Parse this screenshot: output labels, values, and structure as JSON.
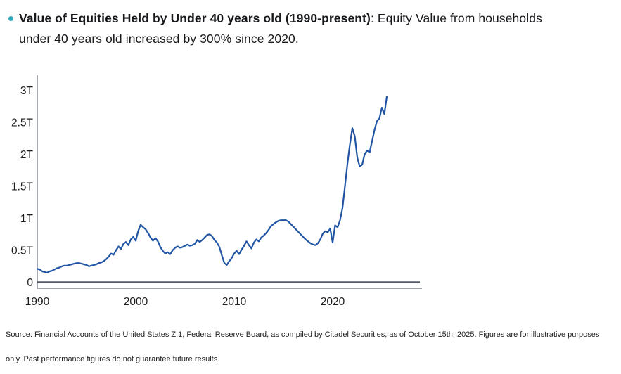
{
  "page": {
    "background": "#ffffff"
  },
  "bullet": {
    "color": "#2fa9b8"
  },
  "title": {
    "bold": "Value of Equities Held by Under 40 years old (1990-present)",
    "rest": ": Equity Value from households under 40 years old increased by 300% since 2020."
  },
  "footer": {
    "line1": "Source: Financial Accounts of the United States Z.1, Federal Reserve Board, as compiled by Citadel Securities, as of October 15th, 2025. Figures are for illustrative purposes",
    "line2": "only. Past performance figures do not guarantee future results."
  },
  "chart_data": {
    "type": "line",
    "title": "Value of Equities Held by Under 40 years old (1990-present)",
    "xlabel": "",
    "ylabel": "",
    "unit": "T (trillions)",
    "grid": false,
    "legend": "none",
    "xlim": [
      1990,
      2029
    ],
    "ylim": [
      0,
      3.2
    ],
    "x_ticks": [
      {
        "label": "1990",
        "value": 1990
      },
      {
        "label": "2000",
        "value": 2000
      },
      {
        "label": "2010",
        "value": 2010
      },
      {
        "label": "2020",
        "value": 2020
      }
    ],
    "y_ticks": [
      {
        "label": "3T",
        "value": 3
      },
      {
        "label": "2.5T",
        "value": 2.5
      },
      {
        "label": "2T",
        "value": 2
      },
      {
        "label": "1.5T",
        "value": 1.5
      },
      {
        "label": "1T",
        "value": 1
      },
      {
        "label": "0.5T",
        "value": 0.5
      },
      {
        "label": "0",
        "value": 0
      }
    ],
    "axis_color": "#6b7380",
    "zero_line_color": "#555b64",
    "baseline_color": "#9aa2ac",
    "series": [
      {
        "name": "equity-value-under-40",
        "color": "#2155a4",
        "x_start": 1990,
        "x_step": 0.25,
        "values": [
          0.21,
          0.2,
          0.17,
          0.16,
          0.15,
          0.17,
          0.18,
          0.2,
          0.22,
          0.23,
          0.25,
          0.26,
          0.26,
          0.27,
          0.28,
          0.29,
          0.3,
          0.3,
          0.29,
          0.28,
          0.27,
          0.25,
          0.26,
          0.27,
          0.28,
          0.3,
          0.31,
          0.33,
          0.36,
          0.4,
          0.45,
          0.43,
          0.5,
          0.56,
          0.52,
          0.6,
          0.63,
          0.58,
          0.67,
          0.71,
          0.65,
          0.8,
          0.9,
          0.86,
          0.83,
          0.77,
          0.7,
          0.65,
          0.69,
          0.64,
          0.55,
          0.49,
          0.45,
          0.47,
          0.44,
          0.5,
          0.54,
          0.56,
          0.54,
          0.55,
          0.57,
          0.59,
          0.57,
          0.58,
          0.6,
          0.66,
          0.63,
          0.66,
          0.7,
          0.74,
          0.75,
          0.72,
          0.66,
          0.62,
          0.55,
          0.42,
          0.3,
          0.27,
          0.33,
          0.38,
          0.45,
          0.49,
          0.44,
          0.51,
          0.57,
          0.64,
          0.58,
          0.53,
          0.62,
          0.67,
          0.64,
          0.7,
          0.73,
          0.77,
          0.82,
          0.88,
          0.91,
          0.94,
          0.96,
          0.97,
          0.97,
          0.97,
          0.95,
          0.91,
          0.87,
          0.83,
          0.79,
          0.75,
          0.71,
          0.67,
          0.64,
          0.61,
          0.59,
          0.58,
          0.61,
          0.67,
          0.76,
          0.8,
          0.78,
          0.84,
          0.62,
          0.89,
          0.86,
          0.97,
          1.16,
          1.5,
          1.85,
          2.15,
          2.41,
          2.28,
          1.95,
          1.81,
          1.84,
          2.0,
          2.06,
          2.03,
          2.2,
          2.38,
          2.52,
          2.56,
          2.73,
          2.63,
          2.9
        ]
      }
    ]
  }
}
